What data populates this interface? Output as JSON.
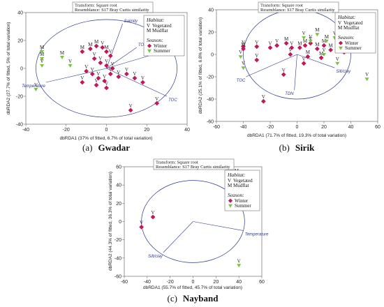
{
  "chart_data": [
    {
      "id": "gwadar",
      "type": "scatter",
      "caption_prefix": "(a)",
      "caption_name": "Gwadar",
      "header": [
        "Transform: Square root",
        "Resemblance: S17 Bray Curtis similarity"
      ],
      "xlabel": "dbRDA1 (37% of fitted, 6.7% of total variation)",
      "ylabel": "dbRDA2 (27.7% of fitted, 5% of total variation)",
      "xlim": [
        -40,
        40
      ],
      "ylim": [
        -40,
        40
      ],
      "xticks": [
        -40,
        -20,
        0,
        20,
        40
      ],
      "yticks": [
        -40,
        -20,
        0,
        20,
        40
      ],
      "legend": {
        "habitat_title": "Habitat:",
        "habitat_labels": [
          "V",
          "M"
        ],
        "habitat_names": [
          "Vegetated",
          "Mudflat"
        ],
        "season_title": "Season:",
        "season_names": [
          "Winter",
          "Summer"
        ]
      },
      "colors": {
        "Winter": "#c2185b",
        "Summer": "#7cc242",
        "vector": "#2b3a8c"
      },
      "circle": {
        "cx": 0,
        "cy": 0,
        "r": 35
      },
      "vectors": [
        {
          "name": "Salinity",
          "x": 8,
          "y": 32
        },
        {
          "name": "TON",
          "x": 15,
          "y": 15
        },
        {
          "name": "Silt/clay",
          "x": 28,
          "y": 12
        },
        {
          "name": "TOC",
          "x": 30,
          "y": -20
        },
        {
          "name": "Temperature",
          "x": -30,
          "y": -10
        }
      ],
      "series": [
        {
          "name": "Winter",
          "points": [
            {
              "x": -12,
              "y": 12,
              "label": "M"
            },
            {
              "x": -8,
              "y": 14,
              "label": "M"
            },
            {
              "x": -5,
              "y": 16,
              "label": "M"
            },
            {
              "x": -2,
              "y": 15,
              "label": "V"
            },
            {
              "x": 0,
              "y": 12,
              "label": "M"
            },
            {
              "x": 2,
              "y": 9,
              "label": "V"
            },
            {
              "x": -6,
              "y": 7,
              "label": "V"
            },
            {
              "x": -3,
              "y": 4,
              "label": "V"
            },
            {
              "x": 0,
              "y": 2,
              "label": "V"
            },
            {
              "x": 3,
              "y": 0,
              "label": "V"
            },
            {
              "x": -10,
              "y": -2,
              "label": "V"
            },
            {
              "x": -7,
              "y": -4,
              "label": "V"
            },
            {
              "x": -4,
              "y": -7,
              "label": "V"
            },
            {
              "x": -1,
              "y": -9,
              "label": "V"
            },
            {
              "x": 2,
              "y": -4,
              "label": "V"
            },
            {
              "x": 6,
              "y": -6,
              "label": "V"
            },
            {
              "x": 10,
              "y": -4,
              "label": "V"
            },
            {
              "x": 14,
              "y": -7,
              "label": "V"
            },
            {
              "x": 18,
              "y": -10,
              "label": "V"
            },
            {
              "x": 25,
              "y": -25,
              "label": "V"
            },
            {
              "x": 12,
              "y": -30,
              "label": "V"
            },
            {
              "x": -5,
              "y": -12,
              "label": "V"
            },
            {
              "x": 0,
              "y": -14,
              "label": "V"
            },
            {
              "x": -12,
              "y": -10,
              "label": "V"
            }
          ]
        },
        {
          "name": "Summer",
          "points": [
            {
              "x": -32,
              "y": 12,
              "label": "M"
            },
            {
              "x": -32,
              "y": 7,
              "label": "M"
            },
            {
              "x": -32,
              "y": 2,
              "label": "V"
            },
            {
              "x": -22,
              "y": 8,
              "label": "M"
            },
            {
              "x": -18,
              "y": 2,
              "label": "V"
            },
            {
              "x": -35,
              "y": -15,
              "label": "V"
            },
            {
              "x": 30,
              "y": 32,
              "label": "M"
            }
          ]
        }
      ]
    },
    {
      "id": "sirik",
      "type": "scatter",
      "caption_prefix": "(b)",
      "caption_name": "Sirik",
      "header": [
        "Transform: Square root",
        "Resemblance: S17 Bray Curtis similarity"
      ],
      "xlabel": "dbRDA1 (71.7% of fitted, 19.3% of total variation)",
      "ylabel": "dbRDA2 (25.1% of fitted, 6.8% of total variation)",
      "xlim": [
        -60,
        60
      ],
      "ylim": [
        -60,
        40
      ],
      "xticks": [
        -60,
        -40,
        -20,
        0,
        20,
        40,
        60
      ],
      "yticks": [
        -60,
        -40,
        -20,
        0,
        20,
        40
      ],
      "legend": {
        "habitat_title": "Habitat:",
        "habitat_labels": [
          "V",
          "M"
        ],
        "habitat_names": [
          "Vegetated",
          "Mudflat"
        ],
        "season_title": "Season:",
        "season_names": [
          "Winter",
          "Summer"
        ]
      },
      "colors": {
        "Winter": "#c2185b",
        "Summer": "#7cc242",
        "vector": "#2b3a8c"
      },
      "circle": {
        "cx": 0,
        "cy": 0,
        "r": 40
      },
      "vectors": [
        {
          "name": "TOC",
          "x": -38,
          "y": -20
        },
        {
          "name": "TDN",
          "x": -2,
          "y": -32
        },
        {
          "name": "Silt/clay",
          "x": 28,
          "y": -12
        }
      ],
      "series": [
        {
          "name": "Winter",
          "points": [
            {
              "x": -40,
              "y": 7,
              "label": "V"
            },
            {
              "x": -40,
              "y": 5,
              "label": "M"
            },
            {
              "x": -30,
              "y": 7,
              "label": "V"
            },
            {
              "x": -20,
              "y": 6,
              "label": "V"
            },
            {
              "x": -15,
              "y": 8,
              "label": "V"
            },
            {
              "x": -8,
              "y": 10,
              "label": "M"
            },
            {
              "x": -4,
              "y": 6,
              "label": "V"
            },
            {
              "x": 2,
              "y": 6,
              "label": "M"
            },
            {
              "x": 6,
              "y": 8,
              "label": "M"
            },
            {
              "x": 10,
              "y": 10,
              "label": "V"
            },
            {
              "x": 15,
              "y": 5,
              "label": "M"
            },
            {
              "x": 20,
              "y": 8,
              "label": "M"
            },
            {
              "x": 25,
              "y": 4,
              "label": "M"
            },
            {
              "x": 30,
              "y": 5,
              "label": "M"
            },
            {
              "x": 35,
              "y": 2,
              "label": "M"
            },
            {
              "x": -5,
              "y": 0,
              "label": "V"
            },
            {
              "x": 8,
              "y": -2,
              "label": "M"
            },
            {
              "x": 18,
              "y": -3,
              "label": "M"
            },
            {
              "x": -30,
              "y": -5,
              "label": "V"
            },
            {
              "x": -10,
              "y": -18,
              "label": "V"
            },
            {
              "x": -25,
              "y": -42,
              "label": "V"
            },
            {
              "x": 5,
              "y": -8,
              "label": "V"
            }
          ]
        },
        {
          "name": "Summer",
          "points": [
            {
              "x": -42,
              "y": -2,
              "label": "V"
            },
            {
              "x": -40,
              "y": -12,
              "label": "V"
            },
            {
              "x": 5,
              "y": 15,
              "label": "V"
            },
            {
              "x": 10,
              "y": 12,
              "label": "V"
            },
            {
              "x": 15,
              "y": 18,
              "label": "M"
            },
            {
              "x": 22,
              "y": 12,
              "label": "M"
            },
            {
              "x": 28,
              "y": 15,
              "label": "V"
            },
            {
              "x": 30,
              "y": -8,
              "label": "V"
            },
            {
              "x": 52,
              "y": -22,
              "label": "V"
            },
            {
              "x": 20,
              "y": 0,
              "label": "V"
            }
          ]
        }
      ]
    },
    {
      "id": "nayband",
      "type": "scatter",
      "caption_prefix": "(c)",
      "caption_name": "Nayband",
      "header": [
        "Transform: Square root",
        "Resemblance: S17 Bray Curtis similarity"
      ],
      "xlabel": "dbRDA1 (55.7% of fitted, 45.7% of total variation)",
      "ylabel": "dbRDA2 (44.3% of fitted, 36.3% of total variation)",
      "xlim": [
        -60,
        60
      ],
      "ylim": [
        -60,
        60
      ],
      "xticks": [
        -60,
        -40,
        -20,
        0,
        20,
        40,
        60
      ],
      "yticks": [
        -60,
        -40,
        -20,
        0,
        20,
        40,
        60
      ],
      "legend": {
        "habitat_title": "Habitat:",
        "habitat_labels": [
          "V",
          "M"
        ],
        "habitat_names": [
          "Vegetated",
          "Mudflat"
        ],
        "season_title": "Season:",
        "season_names": [
          "Winter",
          "Summer"
        ]
      },
      "colors": {
        "Winter": "#c2185b",
        "Summer": "#7cc242",
        "vector": "#2b3a8c"
      },
      "circle": {
        "cx": 0,
        "cy": 0,
        "r": 45
      },
      "vectors": [
        {
          "name": "Temperature",
          "x": 44,
          "y": -10
        },
        {
          "name": "Silt/clay",
          "x": -26,
          "y": -34
        }
      ],
      "series": [
        {
          "name": "Winter",
          "points": [
            {
              "x": -45,
              "y": -6,
              "label": "V"
            },
            {
              "x": -35,
              "y": 5,
              "label": "V"
            },
            {
              "x": 38,
              "y": 51,
              "label": "M"
            }
          ]
        },
        {
          "name": "Summer",
          "points": [
            {
              "x": 40,
              "y": -48,
              "label": "V"
            }
          ]
        }
      ]
    }
  ]
}
